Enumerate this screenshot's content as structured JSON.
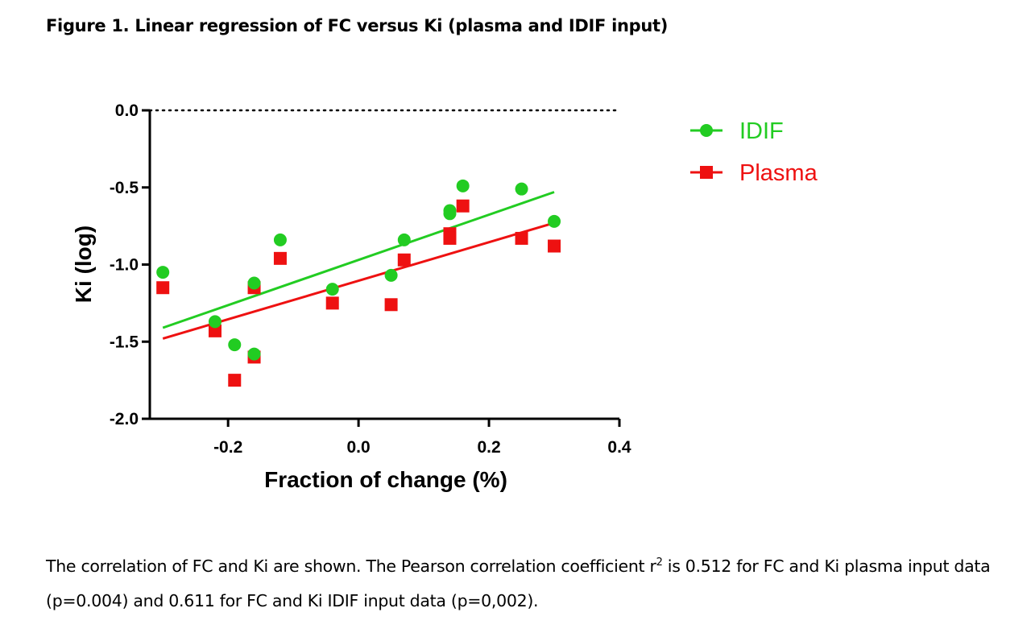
{
  "figure_title": "Figure 1. Linear regression of FC versus Ki (plasma and IDIF input)",
  "caption": {
    "part1": "The correlation of FC and Ki are shown. The Pearson correlation coefficient r",
    "sup": "2",
    "part2": " is 0.512 for FC and Ki plasma input data (p=0.004) and 0.611 for FC and Ki IDIF input data (p=0,002)."
  },
  "chart_data": {
    "type": "scatter",
    "title": "",
    "xlabel": "Fraction of change (%)",
    "ylabel": "Ki (log)",
    "xlim": [
      -0.32,
      0.4
    ],
    "ylim": [
      -2.0,
      0.0
    ],
    "xticks": [
      -0.2,
      0.0,
      0.2,
      0.4
    ],
    "xtick_labels": [
      "-0.2",
      "0.0",
      "0.2",
      "0.4"
    ],
    "yticks": [
      0.0,
      -0.5,
      -1.0,
      -1.5,
      -2.0
    ],
    "ytick_labels": [
      "0.0",
      "-0.5",
      "-1.0",
      "-1.5",
      "-2.0"
    ],
    "reference_line": {
      "y": 0.0,
      "style": "dotted"
    },
    "legend_position": "top-right outside",
    "series": [
      {
        "name": "IDIF",
        "marker": "circle",
        "color": "#22cc22",
        "points": [
          [
            -0.3,
            -1.05
          ],
          [
            -0.22,
            -1.37
          ],
          [
            -0.19,
            -1.52
          ],
          [
            -0.16,
            -1.12
          ],
          [
            -0.16,
            -1.58
          ],
          [
            -0.12,
            -0.84
          ],
          [
            -0.04,
            -1.16
          ],
          [
            0.05,
            -1.07
          ],
          [
            0.07,
            -0.84
          ],
          [
            0.14,
            -0.65
          ],
          [
            0.14,
            -0.67
          ],
          [
            0.16,
            -0.49
          ],
          [
            0.25,
            -0.51
          ],
          [
            0.3,
            -0.72
          ]
        ],
        "fit": {
          "x": [
            -0.3,
            0.3
          ],
          "y": [
            -1.41,
            -0.53
          ]
        }
      },
      {
        "name": "Plasma",
        "marker": "square",
        "color": "#ee1111",
        "points": [
          [
            -0.3,
            -1.15
          ],
          [
            -0.22,
            -1.43
          ],
          [
            -0.19,
            -1.75
          ],
          [
            -0.16,
            -1.15
          ],
          [
            -0.16,
            -1.6
          ],
          [
            -0.12,
            -0.96
          ],
          [
            -0.04,
            -1.25
          ],
          [
            0.05,
            -1.26
          ],
          [
            0.07,
            -0.97
          ],
          [
            0.14,
            -0.8
          ],
          [
            0.14,
            -0.83
          ],
          [
            0.16,
            -0.62
          ],
          [
            0.25,
            -0.83
          ],
          [
            0.3,
            -0.88
          ]
        ],
        "fit": {
          "x": [
            -0.3,
            0.3
          ],
          "y": [
            -1.48,
            -0.73
          ]
        }
      }
    ]
  }
}
